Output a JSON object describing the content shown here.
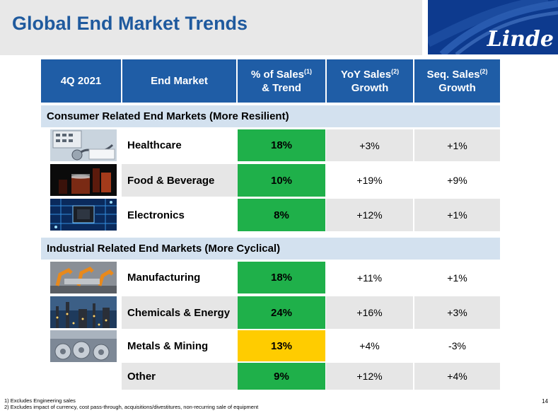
{
  "title": "Global End Market Trends",
  "logo_text": "Linde",
  "headers": {
    "period": "4Q 2021",
    "end_market": "End Market",
    "pct_sales_line1": "% of Sales",
    "pct_sales_sup": "(1)",
    "pct_sales_line2": "& Trend",
    "yoy_line1": "YoY Sales",
    "yoy_sup": "(2)",
    "yoy_line2": "Growth",
    "seq_line1": "Seq. Sales",
    "seq_sup": "(2)",
    "seq_line2": "Growth"
  },
  "sections": {
    "consumer": "Consumer Related End Markets (More Resilient)",
    "industrial": "Industrial Related End Markets (More Cyclical)"
  },
  "rows": [
    {
      "name": "Healthcare",
      "pct": "18%",
      "yoy": "+3%",
      "seq": "+1%",
      "trend": "green"
    },
    {
      "name": "Food & Beverage",
      "pct": "10%",
      "yoy": "+19%",
      "seq": "+9%",
      "trend": "green"
    },
    {
      "name": "Electronics",
      "pct": "8%",
      "yoy": "+12%",
      "seq": "+1%",
      "trend": "green"
    },
    {
      "name": "Manufacturing",
      "pct": "18%",
      "yoy": "+11%",
      "seq": "+1%",
      "trend": "green"
    },
    {
      "name": "Chemicals & Energy",
      "pct": "24%",
      "yoy": "+16%",
      "seq": "+3%",
      "trend": "green"
    },
    {
      "name": "Metals & Mining",
      "pct": "13%",
      "yoy": "+4%",
      "seq": "-3%",
      "trend": "yellow"
    },
    {
      "name": "Other",
      "pct": "9%",
      "yoy": "+12%",
      "seq": "+4%",
      "trend": "green"
    }
  ],
  "footnotes": [
    "1) Excludes Engineering sales",
    "2) Excludes impact of currency, cost pass-through, acquisitions/divestitures, non-recurring sale of equipment"
  ],
  "page_number": "14",
  "colors": {
    "title_blue": "#1f5a9e",
    "header_blue": "#1f5da6",
    "section_blue": "#d3e1ef",
    "trend_green": "#1fb04a",
    "trend_yellow": "#ffcc00",
    "logo_blue": "#0d3a8e"
  }
}
